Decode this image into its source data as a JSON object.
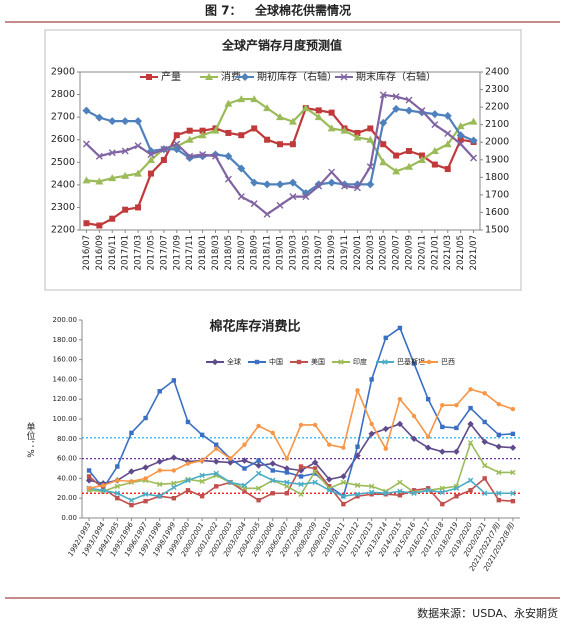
{
  "figure_label": "图 7：",
  "figure_title": "全球棉花供需情况",
  "source": "数据来源：USDA、永安期货",
  "chart_data": [
    {
      "type": "line",
      "title": "全球产销存月度预测值",
      "legend": "top",
      "grid": false,
      "categories": [
        "2016/07",
        "2016/09",
        "2016/11",
        "2017/01",
        "2017/03",
        "2017/05",
        "2017/07",
        "2017/09",
        "2017/11",
        "2018/01",
        "2018/03",
        "2018/05",
        "2018/07",
        "2018/09",
        "2018/11",
        "2019/01",
        "2019/03",
        "2019/05",
        "2019/07",
        "2019/09",
        "2019/11",
        "2020/01",
        "2020/03",
        "2020/05",
        "2020/07",
        "2020/09",
        "2020/11",
        "2021/01",
        "2021/03",
        "2021/05",
        "2021/07"
      ],
      "ylim": [
        2200,
        2900
      ],
      "yticks": [
        2200,
        2300,
        2400,
        2500,
        2600,
        2700,
        2800,
        2900
      ],
      "y2lim": [
        1500,
        2400
      ],
      "y2ticks": [
        1500,
        1600,
        1700,
        1800,
        1900,
        2000,
        2100,
        2200,
        2300,
        2400
      ],
      "series": [
        {
          "name": "产量",
          "color": "#c0393b",
          "marker": "square",
          "values": [
            2230,
            2220,
            2250,
            2290,
            2300,
            2450,
            2510,
            2620,
            2640,
            2640,
            2650,
            2630,
            2620,
            2650,
            2600,
            2580,
            2580,
            2740,
            2730,
            2720,
            2650,
            2630,
            2650,
            2580,
            2530,
            2550,
            2530,
            2490,
            2470,
            2600,
            2590
          ]
        },
        {
          "name": "消费",
          "color": "#9bbb59",
          "marker": "triangle",
          "values": [
            2420,
            2415,
            2430,
            2440,
            2450,
            2510,
            2560,
            2570,
            2600,
            2620,
            2640,
            2760,
            2780,
            2780,
            2740,
            2700,
            2680,
            2740,
            2700,
            2650,
            2640,
            2610,
            2600,
            2500,
            2460,
            2480,
            2510,
            2550,
            2580,
            2660,
            2680
          ]
        },
        {
          "name": "期初库存（右轴）",
          "color": "#4f81bd",
          "marker": "diamond",
          "axis": "y2",
          "values": [
            2180,
            2140,
            2120,
            2120,
            2120,
            1950,
            1960,
            1960,
            1910,
            1920,
            1930,
            1920,
            1850,
            1770,
            1760,
            1760,
            1770,
            1710,
            1760,
            1770,
            1760,
            1760,
            1760,
            2110,
            2190,
            2180,
            2170,
            2160,
            2150,
            2040,
            2010
          ]
        },
        {
          "name": "期末库存（右轴）",
          "color": "#8064a2",
          "marker": "x",
          "axis": "y2",
          "values": [
            1990,
            1920,
            1940,
            1950,
            1980,
            1930,
            1960,
            1990,
            1920,
            1930,
            1920,
            1790,
            1690,
            1650,
            1590,
            1640,
            1690,
            1690,
            1750,
            1830,
            1750,
            1740,
            1860,
            2270,
            2260,
            2240,
            2180,
            2100,
            2050,
            1990,
            1910
          ]
        }
      ]
    },
    {
      "type": "line",
      "title": "棉花库存消费比",
      "ylabel": "单位：%",
      "legend": "top",
      "grid": false,
      "categories": [
        "1992/1993",
        "1993/1994",
        "1994/1995",
        "1995/1996",
        "1996/1997",
        "1997/1998",
        "1998/1999",
        "1999/2000",
        "2000/2001",
        "2001/2002",
        "2002/2003",
        "2003/2004",
        "2004/2005",
        "2005/2006",
        "2006/2007",
        "2007/2008",
        "2008/2009",
        "2009/2010",
        "2010/2011",
        "2011/2012",
        "2012/2013",
        "2013/2014",
        "2014/2015",
        "2015/2016",
        "2016/2017",
        "2017/2018",
        "2018/2019",
        "2019/2020",
        "2020/2021",
        "2021/2022(7月)",
        "2021/2022(8月)"
      ],
      "ylim": [
        0,
        200
      ],
      "yticks": [
        {
          "value": 0,
          "label": "0.00"
        },
        {
          "value": 20,
          "label": "20.00"
        },
        {
          "value": 40,
          "label": "40.00"
        },
        {
          "value": 60,
          "label": "60.00"
        },
        {
          "value": 80,
          "label": "80.00"
        },
        {
          "value": 100,
          "label": "100.00"
        },
        {
          "value": 120,
          "label": "120.00"
        },
        {
          "value": 140,
          "label": "140.00"
        },
        {
          "value": 160,
          "label": "160.00"
        },
        {
          "value": 180,
          "label": "180.00"
        },
        {
          "value": 200,
          "label": "200.00"
        }
      ],
      "hlines": [
        {
          "value": 81,
          "color": "#00b0f0"
        },
        {
          "value": 60,
          "color": "#7030a0"
        },
        {
          "value": 25,
          "color": "#ff0000"
        }
      ],
      "series": [
        {
          "name": "全球",
          "color": "#5f4b8b",
          "marker": "diamond",
          "values": [
            38,
            35,
            38,
            47,
            51,
            57,
            61,
            57,
            58,
            57,
            56,
            58,
            53,
            55,
            50,
            48,
            56,
            39,
            42,
            63,
            85,
            90,
            95,
            80,
            71,
            67,
            67,
            95,
            77,
            72,
            71
          ]
        },
        {
          "name": "中国",
          "color": "#3a6fc4",
          "marker": "square",
          "values": [
            48,
            30,
            52,
            86,
            101,
            128,
            139,
            97,
            84,
            74,
            60,
            50,
            58,
            48,
            46,
            42,
            45,
            32,
            22,
            72,
            140,
            182,
            192,
            156,
            120,
            92,
            91,
            111,
            97,
            84,
            85
          ]
        },
        {
          "name": "美国",
          "color": "#c0504d",
          "marker": "square",
          "values": [
            42,
            30,
            20,
            13,
            17,
            22,
            20,
            28,
            22,
            32,
            36,
            27,
            18,
            25,
            25,
            52,
            50,
            32,
            14,
            22,
            24,
            24,
            23,
            28,
            30,
            14,
            22,
            28,
            40,
            18,
            17
          ]
        },
        {
          "name": "印度",
          "color": "#9bbb59",
          "marker": "x",
          "values": [
            28,
            27,
            32,
            36,
            38,
            34,
            35,
            39,
            37,
            43,
            36,
            30,
            30,
            38,
            32,
            24,
            47,
            30,
            36,
            33,
            32,
            27,
            36,
            26,
            28,
            30,
            32,
            76,
            53,
            46,
            46
          ]
        },
        {
          "name": "巴基斯坦",
          "color": "#4bacc6",
          "marker": "x",
          "values": [
            30,
            28,
            25,
            18,
            24,
            22,
            31,
            38,
            43,
            45,
            36,
            33,
            45,
            38,
            36,
            34,
            36,
            28,
            22,
            24,
            26,
            25,
            27,
            25,
            28,
            26,
            30,
            38,
            25,
            25,
            25
          ]
        },
        {
          "name": "巴西",
          "color": "#f79646",
          "marker": "circle",
          "values": [
            30,
            33,
            38,
            37,
            40,
            48,
            48,
            55,
            58,
            70,
            60,
            74,
            93,
            86,
            60,
            94,
            94,
            74,
            71,
            129,
            95,
            70,
            120,
            103,
            82,
            114,
            114,
            130,
            126,
            115,
            110
          ]
        }
      ]
    }
  ]
}
